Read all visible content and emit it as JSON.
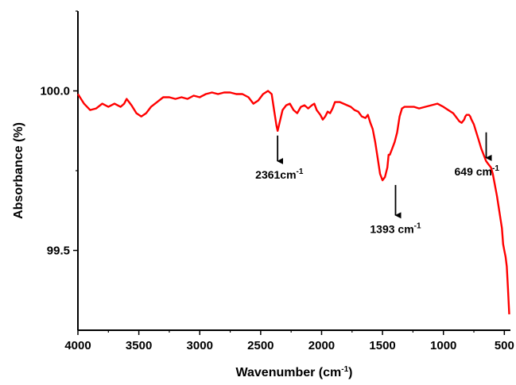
{
  "chart_data": {
    "type": "line",
    "title": "",
    "xlabel_main": "Wavenumber (cm",
    "xlabel_sup": "-1",
    "xlabel_tail": ")",
    "ylabel": "Absorbance (%)",
    "xlim": [
      4000,
      450
    ],
    "ylim": [
      99.25,
      100.25
    ],
    "x_ticks": [
      4000,
      3500,
      3000,
      2500,
      2000,
      1500,
      1000,
      500
    ],
    "y_ticks": [
      99.5,
      100.0
    ],
    "y_tick_labels": [
      "99.5",
      "100.0"
    ],
    "grid": false,
    "series": [
      {
        "color": "#ff0000",
        "x": [
          4000,
          3950,
          3900,
          3850,
          3800,
          3750,
          3700,
          3650,
          3620,
          3600,
          3560,
          3520,
          3480,
          3440,
          3400,
          3350,
          3300,
          3250,
          3200,
          3150,
          3100,
          3050,
          3000,
          2950,
          2900,
          2850,
          2800,
          2750,
          2700,
          2650,
          2600,
          2560,
          2520,
          2480,
          2440,
          2410,
          2390,
          2370,
          2361,
          2345,
          2320,
          2290,
          2260,
          2230,
          2200,
          2170,
          2140,
          2110,
          2080,
          2060,
          2040,
          2010,
          1990,
          1970,
          1950,
          1930,
          1910,
          1890,
          1870,
          1850,
          1820,
          1790,
          1760,
          1730,
          1700,
          1670,
          1640,
          1620,
          1600,
          1580,
          1560,
          1540,
          1520,
          1500,
          1480,
          1460,
          1450,
          1440,
          1420,
          1400,
          1380,
          1360,
          1340,
          1320,
          1300,
          1280,
          1260,
          1240,
          1200,
          1150,
          1100,
          1050,
          1000,
          960,
          920,
          890,
          870,
          850,
          830,
          820,
          810,
          800,
          790,
          780,
          770,
          750,
          730,
          710,
          690,
          670,
          650,
          630,
          610,
          595,
          580,
          560,
          540,
          520,
          510,
          500,
          490,
          480,
          470,
          460
        ],
        "y": [
          99.99,
          99.96,
          99.94,
          99.945,
          99.96,
          99.95,
          99.96,
          99.95,
          99.96,
          99.975,
          99.955,
          99.93,
          99.92,
          99.93,
          99.95,
          99.965,
          99.98,
          99.98,
          99.975,
          99.98,
          99.975,
          99.985,
          99.98,
          99.99,
          99.995,
          99.99,
          99.995,
          99.995,
          99.99,
          99.99,
          99.98,
          99.96,
          99.97,
          99.99,
          100.0,
          99.99,
          99.94,
          99.89,
          99.875,
          99.9,
          99.94,
          99.955,
          99.96,
          99.94,
          99.93,
          99.95,
          99.955,
          99.945,
          99.955,
          99.96,
          99.94,
          99.925,
          99.91,
          99.92,
          99.935,
          99.93,
          99.945,
          99.965,
          99.965,
          99.965,
          99.96,
          99.955,
          99.95,
          99.94,
          99.935,
          99.92,
          99.915,
          99.925,
          99.9,
          99.88,
          99.84,
          99.79,
          99.74,
          99.72,
          99.73,
          99.76,
          99.8,
          99.8,
          99.82,
          99.84,
          99.87,
          99.92,
          99.945,
          99.95,
          99.95,
          99.95,
          99.95,
          99.95,
          99.945,
          99.95,
          99.955,
          99.96,
          99.95,
          99.94,
          99.93,
          99.915,
          99.905,
          99.9,
          99.91,
          99.92,
          99.925,
          99.925,
          99.925,
          99.92,
          99.91,
          99.895,
          99.87,
          99.845,
          99.82,
          99.8,
          99.78,
          99.77,
          99.76,
          99.74,
          99.71,
          99.67,
          99.62,
          99.57,
          99.52,
          99.5,
          99.48,
          99.45,
          99.38,
          99.3
        ]
      }
    ],
    "annotations": [
      {
        "value": "2361",
        "unit": "cm",
        "sup": "-1",
        "arrow_x": 2361,
        "arrow_from_y": 99.875,
        "arrow_to_y": 99.78
      },
      {
        "value": "1393",
        "unit": " cm",
        "sup": "-1",
        "arrow_x": 1393,
        "arrow_from_y": 99.72,
        "arrow_to_y": 99.61
      },
      {
        "value": "649",
        "unit": " cm",
        "sup": "-1",
        "arrow_x": 649,
        "arrow_from_y": 99.885,
        "arrow_to_y": 99.79
      }
    ]
  }
}
